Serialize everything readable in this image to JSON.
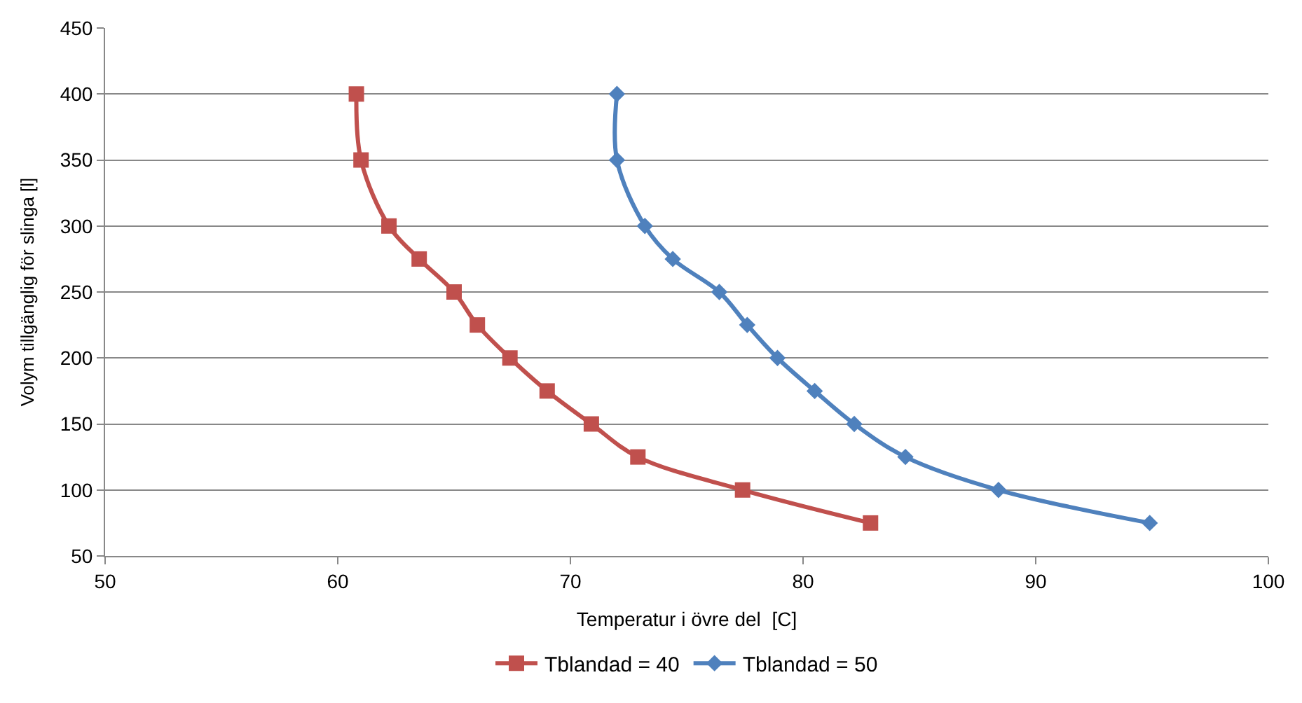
{
  "chart_data": {
    "type": "line",
    "xlabel": "Temperatur i övre del  [C]",
    "ylabel": "Volym tillgänglig för slinga [l]",
    "xlim": [
      50,
      100
    ],
    "xticks": [
      50,
      60,
      70,
      80,
      90,
      100
    ],
    "ylim": [
      50,
      450
    ],
    "yticks": [
      50,
      100,
      150,
      200,
      250,
      300,
      350,
      400,
      450
    ],
    "grid": "y",
    "legend": "bottom",
    "series": [
      {
        "name": "Tblandad = 40",
        "color": "#c0504d",
        "marker": "square",
        "x": [
          60.8,
          61.0,
          62.2,
          63.5,
          65.0,
          66.0,
          67.4,
          69.0,
          70.9,
          72.9,
          77.4,
          82.9
        ],
        "values": [
          400,
          350,
          300,
          275,
          250,
          225,
          200,
          175,
          150,
          125,
          100,
          75
        ]
      },
      {
        "name": "Tblandad = 50",
        "color": "#4f81bd",
        "marker": "diamond",
        "x": [
          72.0,
          72.0,
          73.2,
          74.4,
          76.4,
          77.6,
          78.9,
          80.5,
          82.2,
          84.4,
          88.4,
          94.9
        ],
        "values": [
          400,
          350,
          300,
          275,
          250,
          225,
          200,
          175,
          150,
          125,
          100,
          75
        ]
      }
    ]
  }
}
